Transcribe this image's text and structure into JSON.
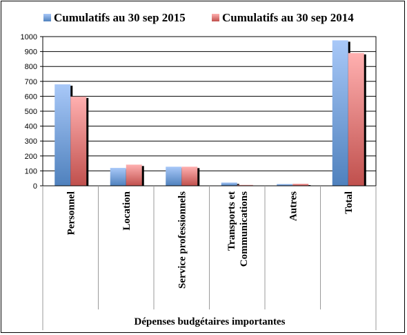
{
  "chart_data": {
    "type": "bar",
    "title": "",
    "xlabel": "Dépenses budgétaires importantes",
    "ylabel": "",
    "ylim": [
      0,
      1000
    ],
    "yticks": [
      0,
      100,
      200,
      300,
      400,
      500,
      600,
      700,
      800,
      900,
      1000
    ],
    "grid": true,
    "legend_position": "top",
    "categories": [
      "Personnel",
      "Location",
      "Service professionnels",
      "Transports et|Communications",
      "Autres",
      "Total"
    ],
    "series": [
      {
        "name": "Cumulatifs au 30 sep 2015",
        "color": "#4f81bd",
        "light": "#a8c8f8",
        "values": [
          680,
          120,
          128,
          22,
          12,
          975
        ]
      },
      {
        "name": "Cumulatifs au 30 sep 2014",
        "color": "#c0504d",
        "light": "#ffb0b0",
        "values": [
          598,
          142,
          128,
          6,
          14,
          890
        ]
      }
    ]
  }
}
